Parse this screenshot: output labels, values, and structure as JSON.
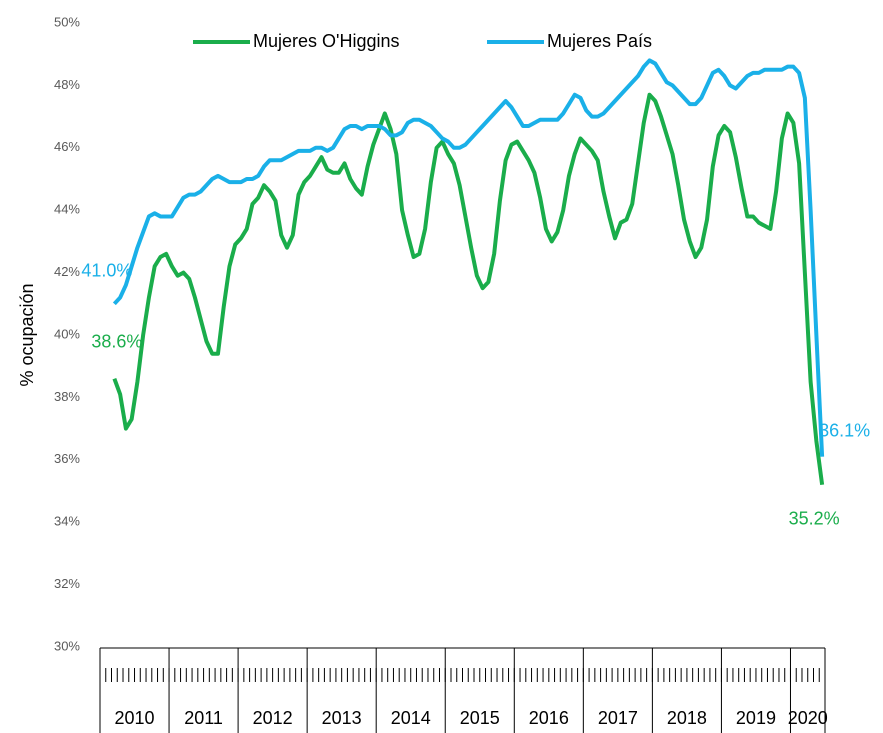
{
  "chart_data": {
    "type": "line",
    "y_label": "% ocupación",
    "ylim": [
      30,
      50
    ],
    "yticks": [
      {
        "value": 30,
        "label": "30%"
      },
      {
        "value": 32,
        "label": "32%"
      },
      {
        "value": 34,
        "label": "34%"
      },
      {
        "value": 36,
        "label": "36%"
      },
      {
        "value": 38,
        "label": "38%"
      },
      {
        "value": 40,
        "label": "40%"
      },
      {
        "value": 42,
        "label": "42%"
      },
      {
        "value": 44,
        "label": "44%"
      },
      {
        "value": 46,
        "label": "46%"
      },
      {
        "value": 48,
        "label": "48%"
      },
      {
        "value": 50,
        "label": "50%"
      }
    ],
    "grid": false,
    "legend": "top",
    "categories": [
      "2010",
      null,
      null,
      null,
      null,
      null,
      null,
      null,
      null,
      null,
      null,
      null,
      "2011",
      null,
      null,
      null,
      null,
      null,
      null,
      null,
      null,
      null,
      null,
      null,
      "2012",
      null,
      null,
      null,
      null,
      null,
      null,
      null,
      null,
      null,
      null,
      null,
      "2013",
      null,
      null,
      null,
      null,
      null,
      null,
      null,
      null,
      null,
      null,
      null,
      "2014",
      null,
      null,
      null,
      null,
      null,
      null,
      null,
      null,
      null,
      null,
      null,
      "2015",
      null,
      null,
      null,
      null,
      null,
      null,
      null,
      null,
      null,
      null,
      null,
      "2016",
      null,
      null,
      null,
      null,
      null,
      null,
      null,
      null,
      null,
      null,
      null,
      "2017",
      null,
      null,
      null,
      null,
      null,
      null,
      null,
      null,
      null,
      null,
      null,
      "2018",
      null,
      null,
      null,
      null,
      null,
      null,
      null,
      null,
      null,
      null,
      null,
      "2019",
      null,
      null,
      null,
      null,
      null,
      null,
      null,
      null,
      null,
      null,
      null,
      "2020",
      null,
      null,
      null,
      null,
      null
    ],
    "series": [
      {
        "name": "Mujeres O'Higgins",
        "color": "#1aad4b",
        "values": [
          null,
          null,
          38.6,
          38.1,
          37.0,
          37.3,
          38.5,
          40.0,
          41.2,
          42.2,
          42.5,
          42.6,
          42.2,
          41.9,
          42.0,
          41.8,
          41.2,
          40.5,
          39.8,
          39.4,
          39.4,
          40.9,
          42.2,
          42.9,
          43.1,
          43.4,
          44.2,
          44.4,
          44.8,
          44.6,
          44.3,
          43.2,
          42.8,
          43.2,
          44.5,
          44.9,
          45.1,
          45.4,
          45.7,
          45.3,
          45.2,
          45.2,
          45.5,
          45.0,
          44.7,
          44.5,
          45.4,
          46.1,
          46.6,
          47.1,
          46.6,
          45.8,
          44.0,
          43.2,
          42.5,
          42.6,
          43.4,
          44.9,
          46.0,
          46.2,
          45.8,
          45.5,
          44.8,
          43.8,
          42.8,
          41.9,
          41.5,
          41.7,
          42.6,
          44.3,
          45.6,
          46.1,
          46.2,
          45.9,
          45.6,
          45.2,
          44.4,
          43.4,
          43.0,
          43.3,
          44.0,
          45.1,
          45.8,
          46.3,
          46.1,
          45.9,
          45.6,
          44.6,
          43.8,
          43.1,
          43.6,
          43.7,
          44.2,
          45.5,
          46.8,
          47.7,
          47.5,
          47.0,
          46.4,
          45.8,
          44.8,
          43.7,
          43.0,
          42.5,
          42.8,
          43.7,
          45.4,
          46.4,
          46.7,
          46.5,
          45.7,
          44.7,
          43.8,
          43.8,
          43.6,
          43.5,
          43.4,
          44.6,
          46.3,
          47.1,
          46.8,
          45.5,
          42.0,
          38.5,
          36.6,
          35.2
        ],
        "value_labels": [
          null,
          null,
          "38.6%",
          null,
          null,
          null,
          null,
          null,
          null,
          null,
          null,
          null,
          null,
          null,
          null,
          null,
          null,
          null,
          null,
          null,
          null,
          null,
          null,
          null,
          null,
          null,
          null,
          null,
          null,
          null,
          null,
          null,
          null,
          null,
          null,
          null,
          null,
          null,
          null,
          null,
          null,
          null,
          null,
          null,
          null,
          null,
          null,
          null,
          null,
          null,
          null,
          null,
          null,
          null,
          null,
          null,
          null,
          null,
          null,
          null,
          null,
          null,
          null,
          null,
          null,
          null,
          null,
          null,
          null,
          null,
          null,
          null,
          null,
          null,
          null,
          null,
          null,
          null,
          null,
          null,
          null,
          null,
          null,
          null,
          null,
          null,
          null,
          null,
          null,
          null,
          null,
          null,
          null,
          null,
          null,
          null,
          null,
          null,
          null,
          null,
          null,
          null,
          null,
          null,
          null,
          null,
          null,
          null,
          null,
          null,
          null,
          null,
          null,
          null,
          null,
          null,
          null,
          null,
          null,
          null,
          null,
          null,
          null,
          null,
          null,
          "35.2%"
        ]
      },
      {
        "name": "Mujeres País",
        "color": "#1ab0e8",
        "values": [
          null,
          null,
          41.0,
          41.2,
          41.6,
          42.2,
          42.8,
          43.3,
          43.8,
          43.9,
          43.8,
          43.8,
          43.8,
          44.1,
          44.4,
          44.5,
          44.5,
          44.6,
          44.8,
          45.0,
          45.1,
          45.0,
          44.9,
          44.9,
          44.9,
          45.0,
          45.0,
          45.1,
          45.4,
          45.6,
          45.6,
          45.6,
          45.7,
          45.8,
          45.9,
          45.9,
          45.9,
          46.0,
          46.0,
          45.9,
          46.0,
          46.3,
          46.6,
          46.7,
          46.7,
          46.6,
          46.7,
          46.7,
          46.7,
          46.6,
          46.4,
          46.4,
          46.5,
          46.8,
          46.9,
          46.9,
          46.8,
          46.7,
          46.5,
          46.3,
          46.2,
          46.0,
          46.0,
          46.1,
          46.3,
          46.5,
          46.7,
          46.9,
          47.1,
          47.3,
          47.5,
          47.3,
          47.0,
          46.7,
          46.7,
          46.8,
          46.9,
          46.9,
          46.9,
          46.9,
          47.1,
          47.4,
          47.7,
          47.6,
          47.2,
          47.0,
          47.0,
          47.1,
          47.3,
          47.5,
          47.7,
          47.9,
          48.1,
          48.3,
          48.6,
          48.8,
          48.7,
          48.4,
          48.1,
          48.0,
          47.8,
          47.6,
          47.4,
          47.4,
          47.6,
          48.0,
          48.4,
          48.5,
          48.3,
          48.0,
          47.9,
          48.1,
          48.3,
          48.4,
          48.4,
          48.5,
          48.5,
          48.5,
          48.5,
          48.6,
          48.6,
          48.4,
          47.6,
          44.0,
          40.0,
          36.1
        ],
        "value_labels": [
          null,
          null,
          "41.0%",
          null,
          null,
          null,
          null,
          null,
          null,
          null,
          null,
          null,
          null,
          null,
          null,
          null,
          null,
          null,
          null,
          null,
          null,
          null,
          null,
          null,
          null,
          null,
          null,
          null,
          null,
          null,
          null,
          null,
          null,
          null,
          null,
          null,
          null,
          null,
          null,
          null,
          null,
          null,
          null,
          null,
          null,
          null,
          null,
          null,
          null,
          null,
          null,
          null,
          null,
          null,
          null,
          null,
          null,
          null,
          null,
          null,
          null,
          null,
          null,
          null,
          null,
          null,
          null,
          null,
          null,
          null,
          null,
          null,
          null,
          null,
          null,
          null,
          null,
          null,
          null,
          null,
          null,
          null,
          null,
          null,
          null,
          null,
          null,
          null,
          null,
          null,
          null,
          null,
          null,
          null,
          null,
          null,
          null,
          null,
          null,
          null,
          null,
          null,
          null,
          null,
          null,
          null,
          null,
          null,
          null,
          null,
          null,
          null,
          null,
          null,
          null,
          null,
          null,
          null,
          null,
          null,
          null,
          null,
          null,
          null,
          null,
          "36.1%"
        ]
      }
    ]
  }
}
